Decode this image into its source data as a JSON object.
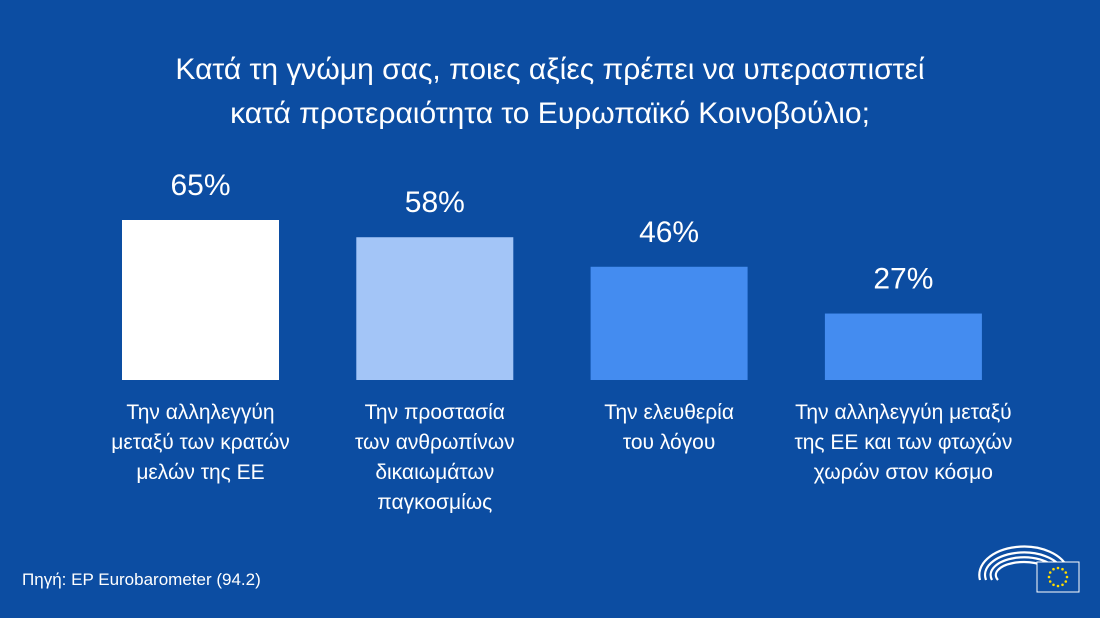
{
  "colors": {
    "background": "#0c4da2",
    "bars": [
      "#ffffff",
      "#a3c5f7",
      "#448cf0",
      "#448cf0"
    ]
  },
  "chart_data": {
    "type": "bar",
    "title": "Κατά τη γνώμη σας, ποιες αξίες πρέπει να υπερασπιστεί κατά προτεραιότητα το Ευρωπαϊκό Κοινοβούλιο;",
    "title_lines": [
      "Κατά τη γνώμη σας, ποιες αξίες πρέπει να υπερασπιστεί",
      "κατά προτεραιότητα το Ευρωπαϊκό Κοινοβούλιο;"
    ],
    "categories": [
      "Την αλληλεγγύη μεταξύ των κρατών μελών της ΕΕ",
      "Την προστασία των ανθρωπίνων δικαιωμάτων παγκοσμίως",
      "Την ελευθερία του λόγου",
      "Την αλληλεγγύη μεταξύ της ΕΕ και των φτωχών χωρών στον κόσμο"
    ],
    "category_lines": [
      [
        "Την αλληλεγγύη",
        "μεταξύ των κρατών",
        "μελών της ΕΕ"
      ],
      [
        "Την προστασία",
        "των ανθρωπίνων",
        "δικαιωμάτων",
        "παγκοσμίως"
      ],
      [
        "Την ελευθερία",
        "του λόγου"
      ],
      [
        "Την αλληλεγγύη μεταξύ",
        "της ΕΕ και των φτωχών",
        "χωρών στον κόσμο"
      ]
    ],
    "values": [
      65,
      58,
      46,
      27
    ],
    "data_labels": [
      "65%",
      "58%",
      "46%",
      "27%"
    ],
    "unit": "%",
    "ylim": [
      0,
      100
    ],
    "grid": false,
    "legend": "none"
  },
  "source": "Πηγή: EP Eurobarometer (94.2)",
  "logo": "european-parliament-logo"
}
